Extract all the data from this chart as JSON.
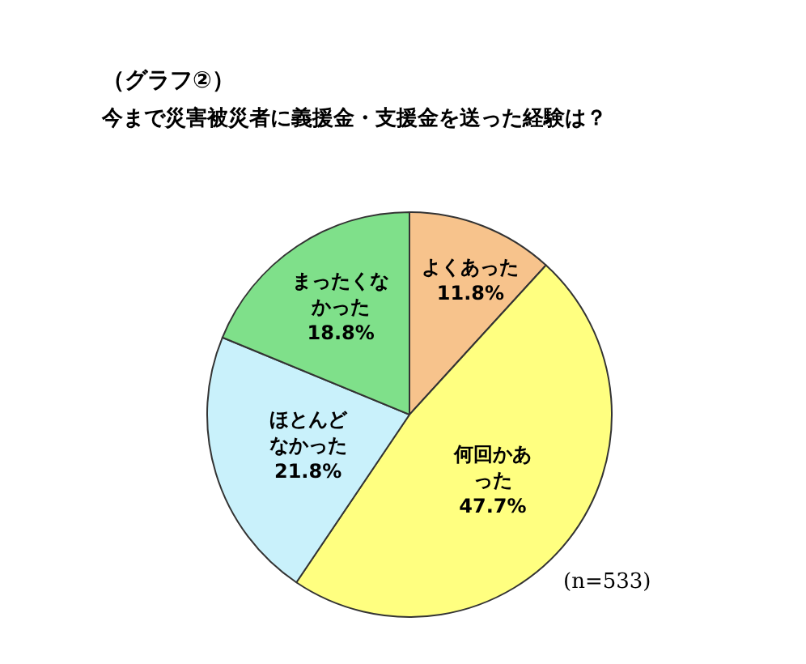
{
  "chart_data": {
    "type": "pie",
    "title": "（グラフ②）",
    "subtitle": "今まで災害被災者に義援金・支援金を送った経験は？",
    "categories": [
      "よくあった",
      "何回かあった",
      "ほとんどなかった",
      "まったくなかった"
    ],
    "values": [
      11.8,
      47.7,
      21.8,
      18.8
    ],
    "value_labels": [
      "11.8%",
      "47.7%",
      "21.8%",
      "18.8%"
    ],
    "colors": [
      "#f7c38c",
      "#ffff80",
      "#c9f1fb",
      "#7fe08a"
    ],
    "annotations": [
      "(n=533)"
    ],
    "legend": false
  }
}
